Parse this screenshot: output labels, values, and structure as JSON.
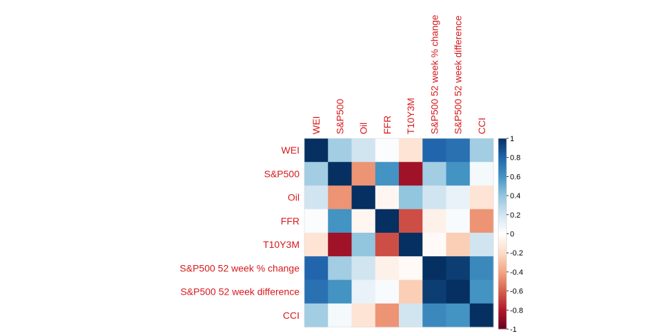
{
  "chart_data": {
    "type": "heatmap",
    "title": "",
    "rows": [
      "WEI",
      "S&P500",
      "Oil",
      "FFR",
      "T10Y3M",
      "S&P500 52 week % change",
      "S&P500 52 week difference",
      "CCI"
    ],
    "columns": [
      "WEI",
      "S&P500",
      "Oil",
      "FFR",
      "T10Y3M",
      "S&P500 52 week % change",
      "S&P500 52 week difference",
      "CCI"
    ],
    "values": [
      [
        1.0,
        0.35,
        0.2,
        0.02,
        -0.15,
        0.8,
        0.75,
        0.35
      ],
      [
        0.35,
        1.0,
        -0.45,
        0.6,
        -0.85,
        0.35,
        0.6,
        0.05
      ],
      [
        0.2,
        -0.45,
        1.0,
        -0.05,
        0.4,
        0.2,
        0.1,
        -0.15
      ],
      [
        0.02,
        0.6,
        -0.05,
        1.0,
        -0.65,
        -0.08,
        0.03,
        -0.45
      ],
      [
        -0.15,
        -0.85,
        0.4,
        -0.65,
        1.0,
        -0.03,
        -0.25,
        0.2
      ],
      [
        0.8,
        0.35,
        0.2,
        -0.08,
        -0.03,
        1.0,
        0.95,
        0.65
      ],
      [
        0.75,
        0.6,
        0.1,
        0.03,
        -0.25,
        0.95,
        1.0,
        0.6
      ],
      [
        0.35,
        0.05,
        -0.15,
        -0.45,
        0.2,
        0.65,
        0.6,
        1.0
      ]
    ],
    "color_scale": {
      "range": [
        -1,
        1
      ],
      "ticks": [
        "1",
        "0.8",
        "0.6",
        "0.4",
        "0.2",
        "0",
        "-0.2",
        "-0.4",
        "-0.6",
        "-0.8",
        "-1"
      ],
      "colors": [
        "#67001F",
        "#B2182B",
        "#D6604D",
        "#F4A582",
        "#FDDBC7",
        "#FFFFFF",
        "#D1E5F0",
        "#92C5DE",
        "#4393C3",
        "#2166AC",
        "#053061"
      ]
    },
    "label_color": "#D7191C",
    "grid": false,
    "legend": "right"
  }
}
